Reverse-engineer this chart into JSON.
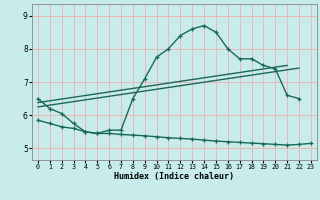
{
  "title": "",
  "xlabel": "Humidex (Indice chaleur)",
  "bg_color": "#c8ecec",
  "grid_color": "#e8b8b8",
  "line_color": "#1a6858",
  "xlim": [
    -0.5,
    23.5
  ],
  "ylim": [
    4.65,
    9.35
  ],
  "yticks": [
    5,
    6,
    7,
    8,
    9
  ],
  "xticks": [
    0,
    1,
    2,
    3,
    4,
    5,
    6,
    7,
    8,
    9,
    10,
    11,
    12,
    13,
    14,
    15,
    16,
    17,
    18,
    19,
    20,
    21,
    22,
    23
  ],
  "curve_upper_x": [
    0,
    1,
    2,
    3,
    4,
    5,
    6,
    7,
    8,
    9,
    10,
    11,
    12,
    13,
    14,
    15,
    16,
    17,
    18,
    19,
    20,
    21,
    22
  ],
  "curve_upper_y": [
    6.5,
    6.2,
    6.05,
    5.75,
    5.5,
    5.45,
    5.55,
    5.55,
    6.5,
    7.1,
    7.75,
    8.0,
    8.4,
    8.6,
    8.7,
    8.5,
    8.0,
    7.7,
    7.7,
    7.5,
    7.4,
    6.6,
    6.5
  ],
  "curve_lower_x": [
    0,
    1,
    2,
    3,
    4,
    5,
    6,
    7,
    8,
    9,
    10,
    11,
    12,
    13,
    14,
    15,
    16,
    17,
    18,
    19,
    20,
    21,
    22,
    23
  ],
  "curve_lower_y": [
    5.85,
    5.75,
    5.65,
    5.6,
    5.5,
    5.45,
    5.45,
    5.42,
    5.4,
    5.38,
    5.35,
    5.32,
    5.3,
    5.28,
    5.25,
    5.22,
    5.2,
    5.18,
    5.16,
    5.14,
    5.12,
    5.1,
    5.12,
    5.15
  ],
  "line1_x": [
    0,
    21
  ],
  "line1_y": [
    6.38,
    7.5
  ],
  "line2_x": [
    0,
    22
  ],
  "line2_y": [
    6.25,
    7.42
  ],
  "linewidth": 1.0,
  "markersize": 3.5
}
